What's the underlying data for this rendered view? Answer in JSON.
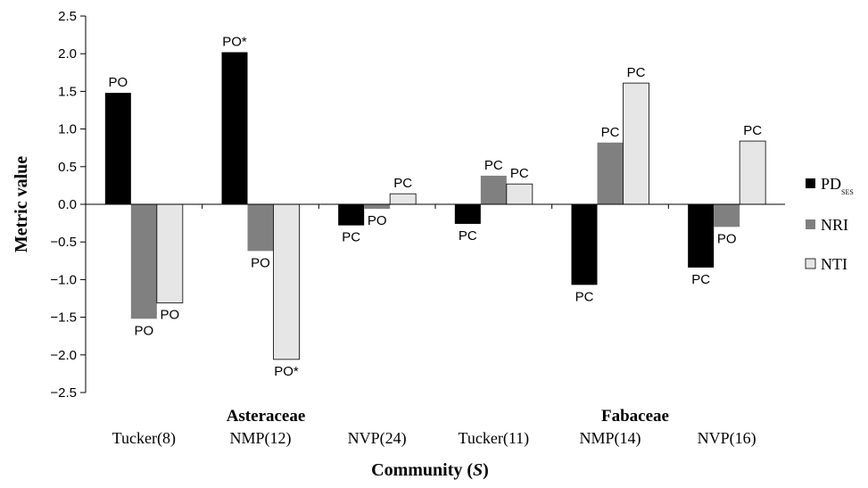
{
  "chart_data": {
    "type": "bar",
    "xlabel": "Community",
    "xlabel_var": "S",
    "ylabel": "Metric value",
    "ylim": [
      -2.5,
      2.5
    ],
    "yticks": [
      "2.5",
      "2.0",
      "1.5",
      "1.0",
      "0.5",
      "0.0",
      "−0.5",
      "−1.0",
      "−1.5",
      "−2.0",
      "−2.5"
    ],
    "ytick_values": [
      2.5,
      2.0,
      1.5,
      1.0,
      0.5,
      0.0,
      -0.5,
      -1.0,
      -1.5,
      -2.0,
      -2.5
    ],
    "grid": false,
    "legend_position": "right",
    "groups": [
      "Asteraceae",
      "Fabaceae"
    ],
    "categories": [
      "Tucker(8)",
      "NMP(12)",
      "NVP(24)",
      "Tucker(11)",
      "NMP(14)",
      "NVP(16)"
    ],
    "series": [
      {
        "name": "PD",
        "name_sub": "SES",
        "color": "#000000",
        "values": [
          1.48,
          2.02,
          -0.28,
          -0.26,
          -1.07,
          -0.84
        ],
        "labels": [
          "PO",
          "PO*",
          "PC",
          "PC",
          "PC",
          "PC"
        ]
      },
      {
        "name": "NRI",
        "color": "#808080",
        "values": [
          -1.52,
          -0.62,
          -0.06,
          0.38,
          0.82,
          -0.3
        ],
        "labels": [
          "PO",
          "PO",
          "PO",
          "PC",
          "PC",
          "PO"
        ]
      },
      {
        "name": "NTI",
        "color": "#e6e6e6",
        "values": [
          -1.31,
          -2.06,
          0.14,
          0.27,
          1.61,
          0.84
        ],
        "labels": [
          "PO",
          "PO*",
          "PC",
          "PC",
          "PC",
          "PC"
        ]
      }
    ]
  }
}
